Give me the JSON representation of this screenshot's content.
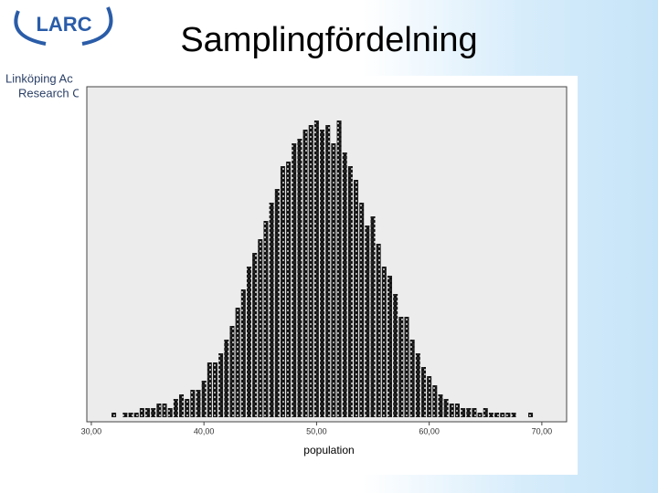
{
  "header": {
    "logo": "LARC",
    "org_line1": "Linköping Ac",
    "org_line2": "Research C",
    "title": "Samplingfördelning"
  },
  "chart_data": {
    "type": "dot",
    "x_label": "population",
    "color": "#000000",
    "x": [
      32,
      32.5,
      33,
      33.5,
      34,
      34.5,
      35,
      35.5,
      36,
      36.5,
      37,
      37.5,
      38,
      38.5,
      39,
      39.5,
      40,
      40.5,
      41,
      41.5,
      42,
      42.5,
      43,
      43.5,
      44,
      44.5,
      45,
      45.5,
      46,
      46.5,
      47,
      47.5,
      48,
      48.5,
      49,
      49.5,
      50,
      50.5,
      51,
      51.5,
      52,
      52.5,
      53,
      53.5,
      54,
      54.5,
      55,
      55.5,
      56,
      56.5,
      57,
      57.5,
      58,
      58.5,
      59,
      59.5,
      60,
      60.5,
      61,
      61.5,
      62,
      62.5,
      63,
      63.5,
      64,
      64.5,
      65,
      65.5,
      66,
      66.5,
      67,
      67.5,
      68,
      68.5,
      69
    ],
    "values": [
      1,
      0,
      1,
      1,
      1,
      2,
      2,
      2,
      3,
      3,
      2,
      4,
      5,
      4,
      6,
      6,
      8,
      12,
      12,
      14,
      17,
      20,
      24,
      28,
      33,
      36,
      39,
      43,
      47,
      50,
      55,
      56,
      60,
      61,
      63,
      64,
      65,
      63,
      64,
      60,
      65,
      58,
      55,
      52,
      47,
      42,
      44,
      38,
      33,
      31,
      27,
      22,
      22,
      17,
      14,
      11,
      9,
      7,
      5,
      4,
      3,
      3,
      2,
      2,
      2,
      1,
      2,
      1,
      1,
      1,
      1,
      1,
      0,
      0,
      1
    ],
    "xlim": [
      29.6,
      72.2
    ],
    "xticks": [
      {
        "value": 30,
        "label": "30,00"
      },
      {
        "value": 40,
        "label": "40,00"
      },
      {
        "value": 50,
        "label": "50,00"
      },
      {
        "value": 60,
        "label": "60,00"
      },
      {
        "value": 70,
        "label": "70,00"
      }
    ]
  }
}
